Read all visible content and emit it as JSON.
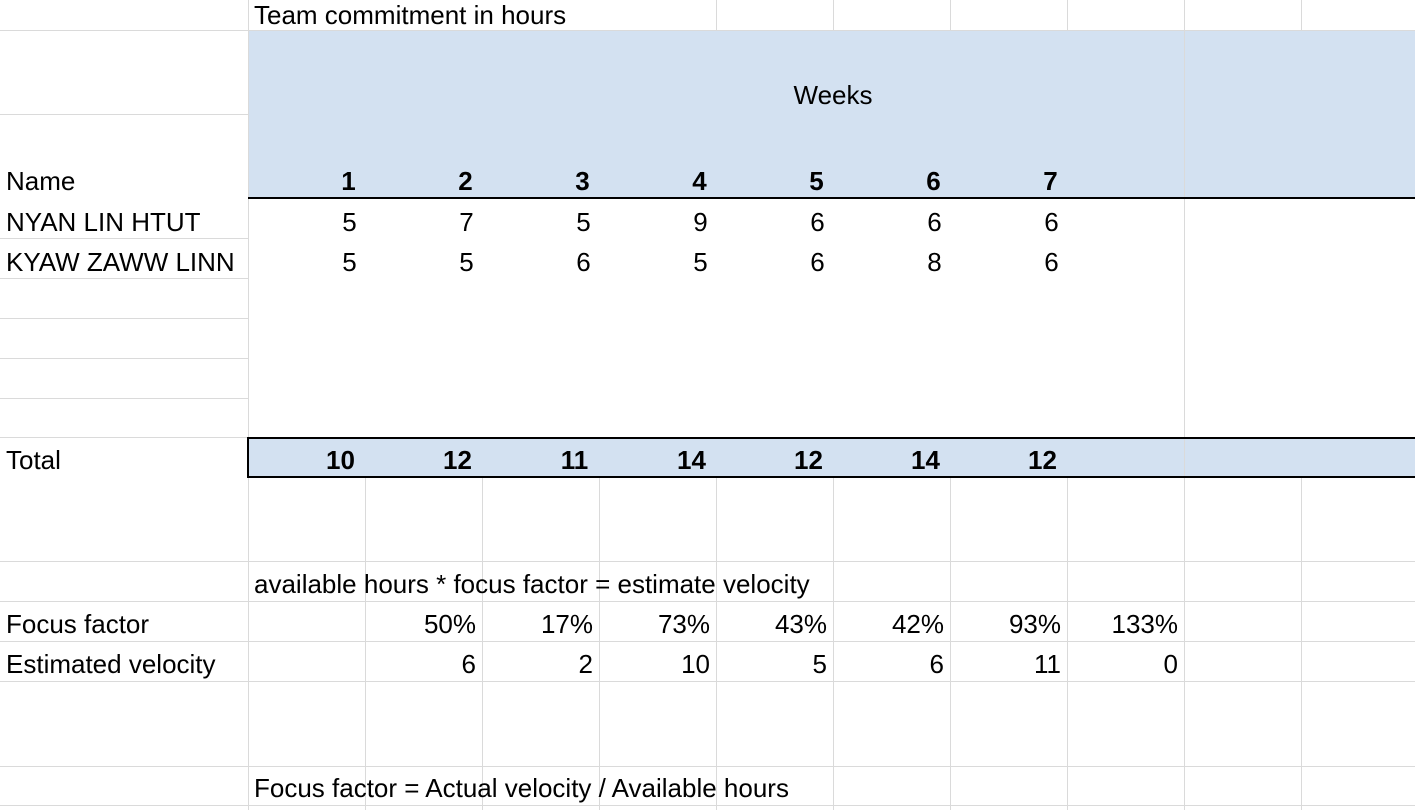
{
  "sheet": {
    "title": "Team commitment in hours",
    "weeks_label": "Weeks",
    "name_header": "Name",
    "week_headers": [
      "1",
      "2",
      "3",
      "4",
      "5",
      "6",
      "7"
    ],
    "rows": [
      {
        "name": "NYAN LIN HTUT",
        "values": [
          "5",
          "7",
          "5",
          "9",
          "6",
          "6",
          "6"
        ]
      },
      {
        "name": "KYAW ZAWW LINN",
        "values": [
          "5",
          "5",
          "6",
          "5",
          "6",
          "8",
          "6"
        ]
      }
    ],
    "total_label": "Total",
    "totals": [
      "10",
      "12",
      "11",
      "14",
      "12",
      "14",
      "12"
    ],
    "formula_note": "available hours  * focus factor = estimate velocity",
    "focus_label": "Focus factor",
    "focus_values": [
      "50%",
      "17%",
      "73%",
      "43%",
      "42%",
      "93%",
      "133%"
    ],
    "velocity_label": "Estimated velocity",
    "velocity_values": [
      "6",
      "2",
      "10",
      "5",
      "6",
      "11",
      "0"
    ],
    "footer_note": "Focus factor = Actual velocity / Available hours"
  },
  "colors": {
    "header_fill": "#d3e1f1",
    "gridline": "#dadada"
  }
}
